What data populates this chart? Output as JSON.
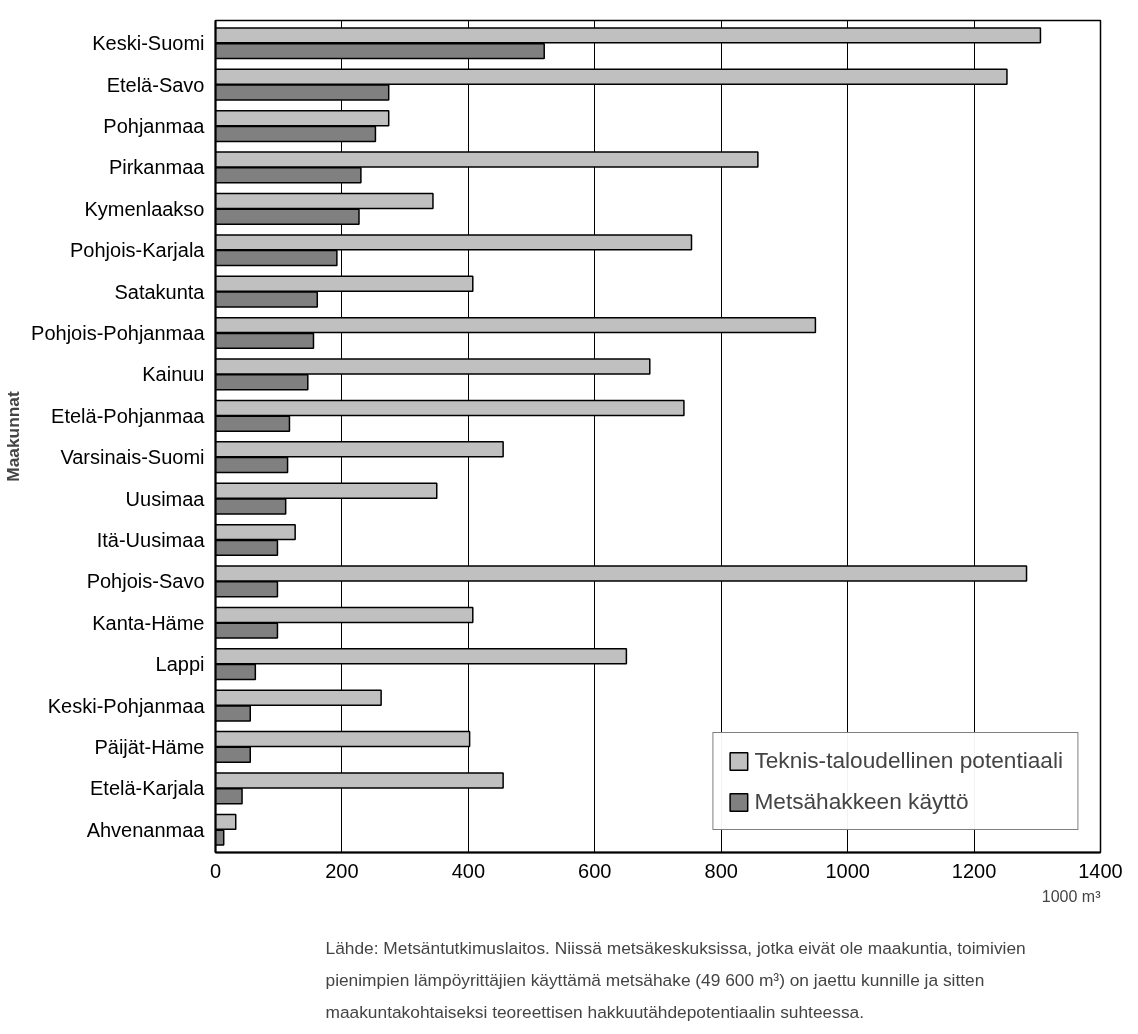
{
  "chart_data": {
    "type": "bar",
    "orientation": "horizontal",
    "ylabel": "Maakunnat",
    "xlabel": "1000 m³",
    "categories": [
      "Keski-Suomi",
      "Etelä-Savo",
      "Pohjanmaa",
      "Pirkanmaa",
      "Kymenlaakso",
      "Pohjois-Karjala",
      "Satakunta",
      "Pohjois-Pohjanmaa",
      "Kainuu",
      "Etelä-Pohjanmaa",
      "Varsinais-Suomi",
      "Uusimaa",
      "Itä-Uusimaa",
      "Pohjois-Savo",
      "Kanta-Häme",
      "Lappi",
      "Keski-Pohjanmaa",
      "Päijät-Häme",
      "Etelä-Karjala",
      "Ahvenanmaa"
    ],
    "series": [
      {
        "name": "Teknis-taloudellinen potentiaali",
        "color": "#c0c0c0",
        "values": [
          1305,
          1252,
          274,
          858,
          344,
          753,
          407,
          949,
          687,
          741,
          455,
          350,
          126,
          1283,
          407,
          650,
          262,
          402,
          455,
          32
        ]
      },
      {
        "name": "Metsähakkeen käyttö",
        "color": "#808080",
        "values": [
          520,
          274,
          253,
          230,
          227,
          192,
          161,
          155,
          146,
          117,
          114,
          111,
          98,
          98,
          98,
          63,
          55,
          55,
          42,
          13
        ]
      }
    ],
    "xlim": [
      0,
      1400
    ],
    "xticks": [
      0,
      200,
      400,
      600,
      800,
      1000,
      1200,
      1400
    ],
    "grid": "x",
    "legend": "bottom right",
    "annotations": [
      "Lähde: Metsäntutkimuslaitos. Niissä metsäkeskuksissa, jotka eivät ole maakuntia, toimivien pienimpien lämpöyrittäjien käyttämä metsähake (49 600 m³) on jaettu kunnille ja sitten maakuntakohtaiseksi teoreettisen hakkuutähdepotentiaalin suhteessa."
    ]
  }
}
